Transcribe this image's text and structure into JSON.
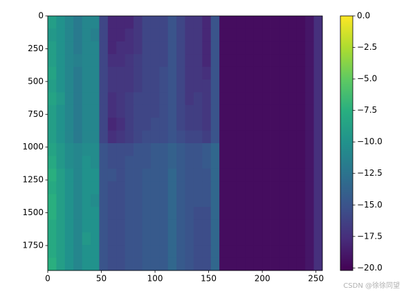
{
  "chart_data": {
    "type": "heatmap",
    "colormap": "viridis",
    "x": [
      4,
      12,
      20,
      28,
      36,
      44,
      52,
      60,
      68,
      76,
      84,
      92,
      100,
      108,
      116,
      124,
      132,
      140,
      148,
      156,
      164,
      172,
      180,
      188,
      196,
      204,
      212,
      220,
      228,
      236,
      244,
      252
    ],
    "y": [
      48.5,
      145.5,
      242.5,
      339.5,
      436.5,
      533.5,
      630.5,
      727.5,
      824.5,
      921.5,
      1018.5,
      1115.5,
      1212.5,
      1309.5,
      1406.5,
      1503.5,
      1600.5,
      1697.5,
      1794.5,
      1891.5
    ],
    "values": [
      [
        -9,
        -10,
        -11,
        -12,
        -11,
        -11,
        -16,
        -18,
        -18,
        -18,
        -17,
        -16,
        -16,
        -16,
        -15,
        -16,
        -17,
        -17,
        -18,
        -15,
        -19.5,
        -19.5,
        -19.5,
        -19.5,
        -19.5,
        -19.5,
        -19.5,
        -19.5,
        -19.5,
        -19.5,
        -19,
        -17.5
      ],
      [
        -9.5,
        -10,
        -11,
        -12,
        -11,
        -11.5,
        -16,
        -18,
        -18,
        -17.5,
        -17,
        -16,
        -16,
        -16,
        -15,
        -16,
        -17,
        -17,
        -18,
        -15,
        -19.5,
        -19.5,
        -19.5,
        -19.5,
        -19.5,
        -19.5,
        -19.5,
        -19.5,
        -19.5,
        -19.5,
        -19,
        -17.5
      ],
      [
        -9,
        -10,
        -11,
        -12,
        -11,
        -11,
        -16,
        -18,
        -17.5,
        -17.5,
        -17,
        -16,
        -16,
        -16,
        -15,
        -16,
        -17,
        -17,
        -18,
        -15,
        -19.5,
        -19.5,
        -19.5,
        -19.5,
        -19.5,
        -19.5,
        -19.5,
        -19.5,
        -19.5,
        -19.5,
        -19,
        -17.5
      ],
      [
        -9,
        -10,
        -11,
        -11.5,
        -11,
        -11,
        -16,
        -17.5,
        -17.5,
        -17,
        -16.5,
        -16,
        -16,
        -16,
        -15,
        -16,
        -17,
        -17,
        -18,
        -15,
        -19.5,
        -19.5,
        -19.5,
        -19.5,
        -19.5,
        -19.5,
        -19.5,
        -19.5,
        -19.5,
        -19.5,
        -19,
        -17.5
      ],
      [
        -8.5,
        -10,
        -11,
        -12,
        -11,
        -11,
        -16,
        -17,
        -17,
        -17,
        -16.5,
        -16,
        -16,
        -15.5,
        -15,
        -16,
        -17,
        -17,
        -17.5,
        -15,
        -19.5,
        -19.5,
        -19.5,
        -19.5,
        -19.5,
        -19.5,
        -19.5,
        -19.5,
        -19.5,
        -19.5,
        -19,
        -17.5
      ],
      [
        -9,
        -10,
        -11,
        -12,
        -11,
        -11,
        -16,
        -17,
        -17,
        -17,
        -16.5,
        -16,
        -16,
        -15.5,
        -15,
        -16,
        -17,
        -17,
        -17,
        -15,
        -19.5,
        -19.5,
        -19.5,
        -19.5,
        -19.5,
        -19.5,
        -19.5,
        -19.5,
        -19.5,
        -19.5,
        -19,
        -17.5
      ],
      [
        -8.5,
        -9.5,
        -11,
        -12,
        -11,
        -11,
        -16,
        -17.5,
        -17,
        -16.5,
        -16,
        -16,
        -16,
        -15.5,
        -15,
        -16,
        -17,
        -16.5,
        -17,
        -15,
        -19.5,
        -19.5,
        -19.5,
        -19.5,
        -19.5,
        -19.5,
        -19.5,
        -19.5,
        -19.5,
        -19.5,
        -19,
        -17.5
      ],
      [
        -9,
        -10,
        -11,
        -12,
        -11,
        -11,
        -16,
        -17.5,
        -17,
        -16.5,
        -16,
        -16,
        -16,
        -15.5,
        -15,
        -16,
        -16.5,
        -16.5,
        -17,
        -15,
        -19.5,
        -19.5,
        -19.5,
        -19.5,
        -19.5,
        -19.5,
        -19.5,
        -19.5,
        -19.5,
        -19.5,
        -19,
        -17.5
      ],
      [
        -9,
        -10,
        -11,
        -12,
        -11,
        -11,
        -16,
        -18,
        -17.5,
        -16.5,
        -16,
        -16,
        -15.5,
        -15.5,
        -15,
        -16,
        -16.5,
        -16.5,
        -17,
        -15,
        -19.5,
        -19.5,
        -19.5,
        -19.5,
        -19.5,
        -19.5,
        -19.5,
        -19.5,
        -19.5,
        -19.5,
        -19,
        -17.5
      ],
      [
        -9,
        -10,
        -11,
        -12,
        -11,
        -11,
        -16,
        -17.5,
        -17,
        -16.5,
        -16,
        -15.5,
        -15.5,
        -15.5,
        -15,
        -15.5,
        -16,
        -16,
        -16.5,
        -15,
        -19.5,
        -19.5,
        -19.5,
        -19.5,
        -19.5,
        -19.5,
        -19.5,
        -19.5,
        -19.5,
        -19.5,
        -19,
        -17.5
      ],
      [
        -8.5,
        -9.5,
        -10.5,
        -11,
        -10.5,
        -10.5,
        -15,
        -15.5,
        -15.5,
        -15.5,
        -15,
        -15,
        -14.5,
        -14.5,
        -14,
        -14.5,
        -15,
        -15,
        -14.5,
        -13.5,
        -19.5,
        -19.5,
        -19.5,
        -19.5,
        -19.5,
        -19.5,
        -19.5,
        -19.5,
        -19.5,
        -19.5,
        -19,
        -17.5
      ],
      [
        -8,
        -9.5,
        -10.5,
        -11,
        -10,
        -10.5,
        -15,
        -15.5,
        -15.5,
        -15,
        -15,
        -15,
        -14.5,
        -14.5,
        -14,
        -14.5,
        -15,
        -15,
        -14.5,
        -13.5,
        -19.5,
        -19.5,
        -19.5,
        -19.5,
        -19.5,
        -19.5,
        -19.5,
        -19.5,
        -19.5,
        -19.5,
        -19,
        -17.5
      ],
      [
        -7.5,
        -9,
        -10,
        -11,
        -10,
        -10,
        -15,
        -15,
        -15.5,
        -15,
        -15,
        -14.5,
        -14.5,
        -14.5,
        -13.5,
        -14.5,
        -15,
        -15,
        -15,
        -13.5,
        -19.5,
        -19.5,
        -19.5,
        -19.5,
        -19.5,
        -19.5,
        -19.5,
        -19.5,
        -19.5,
        -19.5,
        -19,
        -17.5
      ],
      [
        -8,
        -9,
        -10,
        -11,
        -10,
        -10,
        -15,
        -15.5,
        -15.5,
        -15,
        -15,
        -14.5,
        -14.5,
        -14.5,
        -13.5,
        -14.5,
        -15,
        -15,
        -15,
        -13.5,
        -19.5,
        -19.5,
        -19.5,
        -19.5,
        -19.5,
        -19.5,
        -19.5,
        -19.5,
        -19.5,
        -19.5,
        -19,
        -17.5
      ],
      [
        -7.5,
        -9,
        -10,
        -11,
        -10,
        -10.5,
        -15,
        -15.5,
        -15.5,
        -15,
        -15,
        -14.5,
        -14.5,
        -14.5,
        -13.5,
        -14.5,
        -15,
        -15,
        -15,
        -13.5,
        -19.5,
        -19.5,
        -19.5,
        -19.5,
        -19.5,
        -19.5,
        -19.5,
        -19.5,
        -19.5,
        -19.5,
        -19,
        -17.5
      ],
      [
        -7.5,
        -9,
        -10,
        -11,
        -10,
        -10,
        -15,
        -15.5,
        -15.5,
        -15,
        -15,
        -14.5,
        -14.5,
        -14.5,
        -13.5,
        -14.5,
        -15,
        -15.5,
        -15.5,
        -13.5,
        -19.5,
        -19.5,
        -19.5,
        -19.5,
        -19.5,
        -19.5,
        -19.5,
        -19.5,
        -19.5,
        -19.5,
        -19,
        -17.5
      ],
      [
        -8,
        -9,
        -10,
        -11,
        -10,
        -10,
        -15,
        -15.5,
        -15.5,
        -15,
        -15,
        -14.5,
        -14.5,
        -14.5,
        -13.5,
        -14.5,
        -15,
        -15.5,
        -15.5,
        -13.5,
        -19.5,
        -19.5,
        -19.5,
        -19.5,
        -19.5,
        -19.5,
        -19.5,
        -19.5,
        -19.5,
        -19.5,
        -19,
        -17.5
      ],
      [
        -8,
        -9,
        -10,
        -11,
        -9.5,
        -10,
        -15,
        -15.5,
        -15.5,
        -15,
        -15,
        -14.5,
        -14.5,
        -14.5,
        -13.5,
        -14.5,
        -15,
        -15.5,
        -15.5,
        -13.5,
        -19.5,
        -19.5,
        -19.5,
        -19.5,
        -19.5,
        -19.5,
        -19.5,
        -19.5,
        -19.5,
        -19.5,
        -19,
        -17.5
      ],
      [
        -8,
        -9,
        -10,
        -11,
        -10,
        -10,
        -15,
        -15.5,
        -15.5,
        -15,
        -15,
        -14.5,
        -14.5,
        -14.5,
        -13.5,
        -14.5,
        -15,
        -15.5,
        -15.5,
        -13.5,
        -19.5,
        -19.5,
        -19.5,
        -19.5,
        -19.5,
        -19.5,
        -19.5,
        -19.5,
        -19.5,
        -19.5,
        -19,
        -17.5
      ],
      [
        -7.5,
        -9,
        -10,
        -11,
        -10,
        -10,
        -15,
        -15.5,
        -15.5,
        -15,
        -15,
        -14.5,
        -14.5,
        -14.5,
        -13.5,
        -14.5,
        -15,
        -15.5,
        -15.5,
        -13.5,
        -19.5,
        -19.5,
        -19.5,
        -19.5,
        -19.5,
        -19.5,
        -19.5,
        -19.5,
        -19.5,
        -19.5,
        -19,
        -17.5
      ]
    ],
    "xlim": [
      0,
      256
    ],
    "ylim": [
      1940,
      0
    ],
    "xticks": [
      0,
      50,
      100,
      150,
      200,
      250
    ],
    "yticks": [
      0,
      250,
      500,
      750,
      1000,
      1250,
      1500,
      1750
    ],
    "clim": [
      -20.2,
      0
    ],
    "cticks": [
      {
        "value": 0,
        "label": "0.0"
      },
      {
        "value": -2.5,
        "label": "−2.5"
      },
      {
        "value": -5,
        "label": "−5.0"
      },
      {
        "value": -7.5,
        "label": "−7.5"
      },
      {
        "value": -10,
        "label": "−10.0"
      },
      {
        "value": -12.5,
        "label": "−12.5"
      },
      {
        "value": -15,
        "label": "−15.0"
      },
      {
        "value": -17.5,
        "label": "−17.5"
      },
      {
        "value": -20,
        "label": "−20.0"
      }
    ],
    "watermark": "CSDN @徐徐同望"
  }
}
